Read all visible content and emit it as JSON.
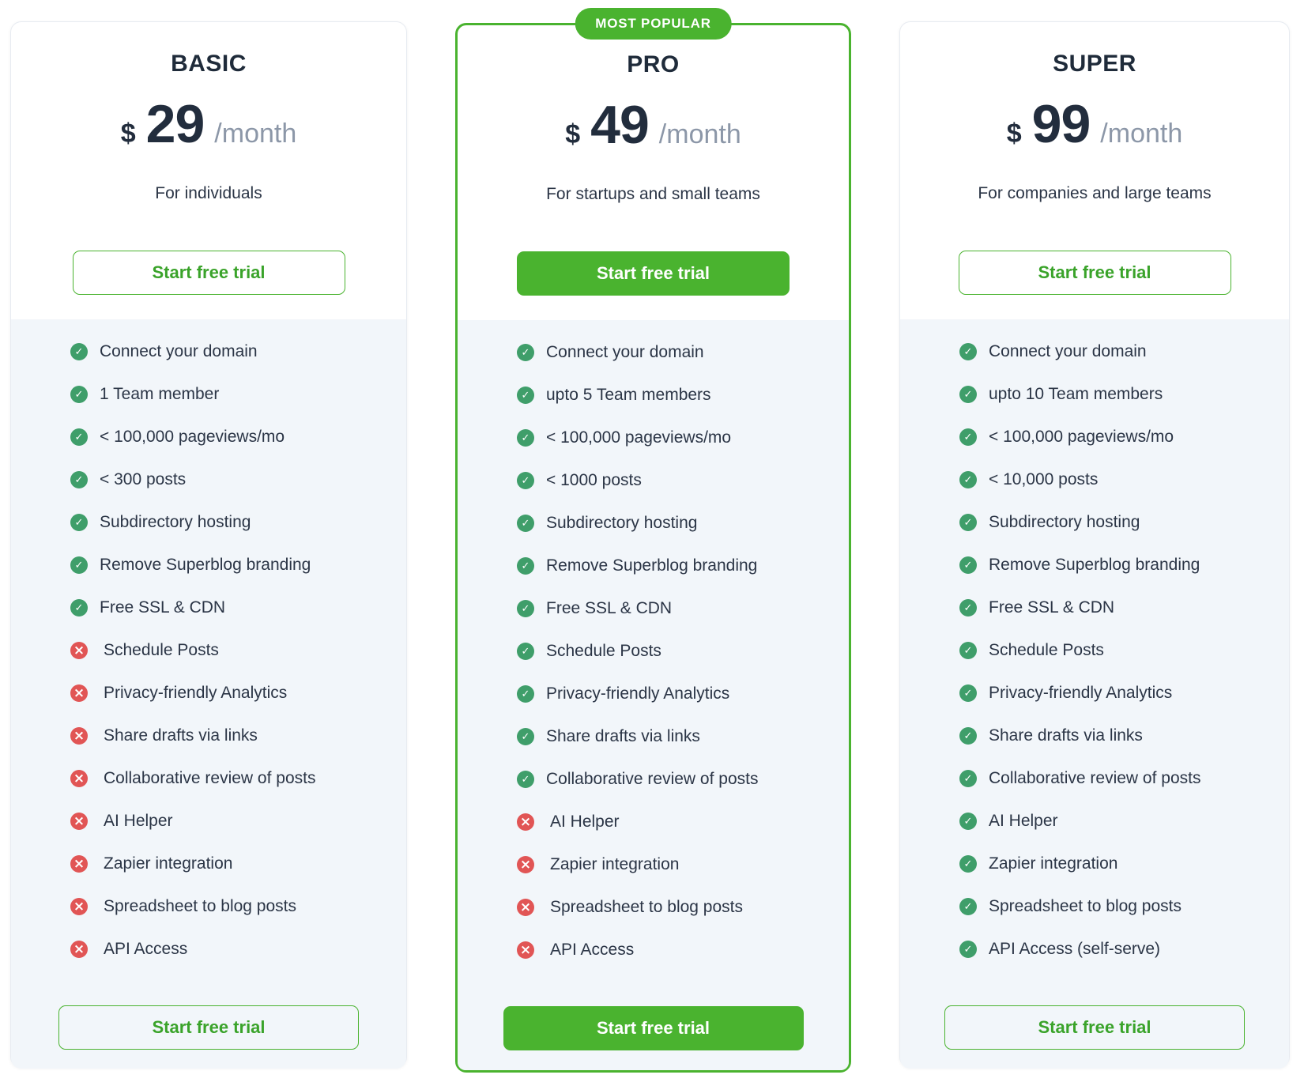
{
  "badge": {
    "label": "MOST POPULAR"
  },
  "colors": {
    "accent_green": "#4ab32f",
    "check_green": "#3f9e6a",
    "cross_red": "#e15555",
    "dark_text": "#222d3d",
    "muted_text": "#8c97a8",
    "panel_bg": "#f2f6fa"
  },
  "icons": {
    "included": "check-icon",
    "excluded": "cross-icon"
  },
  "plans": [
    {
      "name": "BASIC",
      "currency": "$",
      "price": "29",
      "period": "/month",
      "audience": "For individuals",
      "cta_top": "Start free trial",
      "cta_bottom": "Start free trial",
      "features": [
        {
          "label": "Connect your domain",
          "state": "yes"
        },
        {
          "label": "1 Team member",
          "state": "yes"
        },
        {
          "label": "< 100,000 pageviews/mo",
          "state": "yes"
        },
        {
          "label": "< 300 posts",
          "state": "yes"
        },
        {
          "label": "Subdirectory hosting",
          "state": "yes"
        },
        {
          "label": "Remove Superblog branding",
          "state": "yes"
        },
        {
          "label": "Free SSL & CDN",
          "state": "yes"
        },
        {
          "label": "Schedule Posts",
          "state": "no"
        },
        {
          "label": "Privacy-friendly Analytics",
          "state": "no"
        },
        {
          "label": "Share drafts via links",
          "state": "no"
        },
        {
          "label": "Collaborative review of posts",
          "state": "no"
        },
        {
          "label": "AI Helper",
          "state": "no"
        },
        {
          "label": "Zapier integration",
          "state": "no"
        },
        {
          "label": "Spreadsheet to blog posts",
          "state": "no"
        },
        {
          "label": "API Access",
          "state": "no"
        }
      ]
    },
    {
      "name": "PRO",
      "currency": "$",
      "price": "49",
      "period": "/month",
      "audience": "For startups and small teams",
      "cta_top": "Start free trial",
      "cta_bottom": "Start free trial",
      "features": [
        {
          "label": "Connect your domain",
          "state": "yes"
        },
        {
          "label": "upto 5 Team members",
          "state": "yes"
        },
        {
          "label": "< 100,000 pageviews/mo",
          "state": "yes"
        },
        {
          "label": "< 1000 posts",
          "state": "yes"
        },
        {
          "label": "Subdirectory hosting",
          "state": "yes"
        },
        {
          "label": "Remove Superblog branding",
          "state": "yes"
        },
        {
          "label": "Free SSL & CDN",
          "state": "yes"
        },
        {
          "label": "Schedule Posts",
          "state": "yes"
        },
        {
          "label": "Privacy-friendly Analytics",
          "state": "yes"
        },
        {
          "label": "Share drafts via links",
          "state": "yes"
        },
        {
          "label": "Collaborative review of posts",
          "state": "yes"
        },
        {
          "label": "AI Helper",
          "state": "no"
        },
        {
          "label": "Zapier integration",
          "state": "no"
        },
        {
          "label": "Spreadsheet to blog posts",
          "state": "no"
        },
        {
          "label": "API Access",
          "state": "no"
        }
      ]
    },
    {
      "name": "SUPER",
      "currency": "$",
      "price": "99",
      "period": "/month",
      "audience": "For companies and large teams",
      "cta_top": "Start free trial",
      "cta_bottom": "Start free trial",
      "features": [
        {
          "label": "Connect your domain",
          "state": "yes"
        },
        {
          "label": "upto 10 Team members",
          "state": "yes"
        },
        {
          "label": "< 100,000 pageviews/mo",
          "state": "yes"
        },
        {
          "label": "< 10,000 posts",
          "state": "yes"
        },
        {
          "label": "Subdirectory hosting",
          "state": "yes"
        },
        {
          "label": "Remove Superblog branding",
          "state": "yes"
        },
        {
          "label": "Free SSL & CDN",
          "state": "yes"
        },
        {
          "label": "Schedule Posts",
          "state": "yes"
        },
        {
          "label": "Privacy-friendly Analytics",
          "state": "yes"
        },
        {
          "label": "Share drafts via links",
          "state": "yes"
        },
        {
          "label": "Collaborative review of posts",
          "state": "yes"
        },
        {
          "label": "AI Helper",
          "state": "yes"
        },
        {
          "label": "Zapier integration",
          "state": "yes"
        },
        {
          "label": "Spreadsheet to blog posts",
          "state": "yes"
        },
        {
          "label": "API Access (self-serve)",
          "state": "yes"
        }
      ]
    }
  ]
}
